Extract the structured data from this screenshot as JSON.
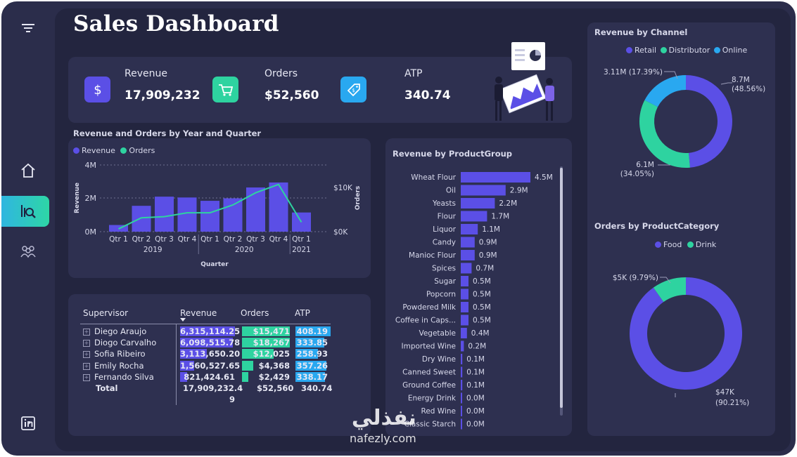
{
  "page": {
    "title": "Sales Dashboard"
  },
  "sidebar": {
    "items": [
      {
        "name": "filter-icon"
      },
      {
        "name": "home-icon"
      },
      {
        "name": "analytics-icon",
        "active": true
      },
      {
        "name": "team-icon"
      },
      {
        "name": "linkedin-icon"
      }
    ]
  },
  "kpis": [
    {
      "label": "Revenue",
      "value": "17,909,232",
      "icon": "dollar-icon",
      "color": "#5b4fe6"
    },
    {
      "label": "Orders",
      "value": "$52,560",
      "icon": "cart-icon",
      "color": "#2ed3a0"
    },
    {
      "label": "ATP",
      "value": "340.74",
      "icon": "tag-icon",
      "color": "#29a8f0"
    }
  ],
  "combo": {
    "title": "Revenue and Orders by Year and Quarter",
    "legend": [
      "Revenue",
      "Orders"
    ],
    "y_left_label": "Revenue",
    "y_right_label": "Orders",
    "x_label": "Quarter",
    "y_left_ticks": [
      "4M",
      "2M",
      "0M"
    ],
    "y_right_ticks": [
      "$10K",
      "$0K"
    ],
    "quarters": [
      "Qtr 1",
      "Qtr 2",
      "Qtr 3",
      "Qtr 4",
      "Qtr 1",
      "Qtr 2",
      "Qtr 3",
      "Qtr 4",
      "Qtr 1"
    ],
    "years": [
      "2019",
      "2020",
      "2021"
    ]
  },
  "table": {
    "headers": [
      "Supervisor",
      "Revenue",
      "Orders",
      "ATP"
    ],
    "rows": [
      {
        "name": "Diego Araujo",
        "revenue": "6,315,114.25",
        "orders": "$15,471",
        "atp": "408.19",
        "rev_frac": 1.0,
        "ord_frac": 1.0,
        "atp_frac": 1.0
      },
      {
        "name": "Diogo Carvalho",
        "revenue": "6,098,515.78",
        "orders": "$18,267",
        "atp": "333.85",
        "rev_frac": 0.966,
        "ord_frac": 1.0,
        "atp_frac": 0.82
      },
      {
        "name": "Sofia Ribeiro",
        "revenue": "3,113,650.20",
        "orders": "$12,025",
        "atp": "258.93",
        "rev_frac": 0.49,
        "ord_frac": 0.66,
        "atp_frac": 0.63
      },
      {
        "name": "Emily Rocha",
        "revenue": "1,560,527.65",
        "orders": "$4,368",
        "atp": "357.26",
        "rev_frac": 0.25,
        "ord_frac": 0.24,
        "atp_frac": 0.88
      },
      {
        "name": "Fernando Silva",
        "revenue": "821,424.61",
        "orders": "$2,429",
        "atp": "338.17",
        "rev_frac": 0.13,
        "ord_frac": 0.13,
        "atp_frac": 0.83
      }
    ],
    "total": {
      "label": "Total",
      "revenue_line1": "17,909,232.4",
      "revenue_line2": "9",
      "orders": "$52,560",
      "atp": "340.74"
    }
  },
  "product_group": {
    "title": "Revenue by ProductGroup"
  },
  "channel": {
    "title": "Revenue by Channel",
    "legend": [
      "Retail",
      "Distributor",
      "Online"
    ]
  },
  "category": {
    "title": "Orders by ProductCategory",
    "legend": [
      "Food",
      "Drink"
    ]
  },
  "watermark": {
    "arabic": "نفذلي",
    "latin": "nafezly.com"
  },
  "colors": {
    "purple": "#5b4fe6",
    "green": "#2ed3a0",
    "blue": "#29a8f0",
    "panel": "#2e3050"
  },
  "chart_data": [
    {
      "type": "bar",
      "title": "Revenue and Orders by Year and Quarter",
      "xlabel": "Quarter",
      "ylabel": "Revenue",
      "categories": [
        "2019 Qtr 1",
        "2019 Qtr 2",
        "2019 Qtr 3",
        "2019 Qtr 4",
        "2020 Qtr 1",
        "2020 Qtr 2",
        "2020 Qtr 3",
        "2020 Qtr 4",
        "2021 Qtr 1"
      ],
      "ylim": [
        0,
        4000000
      ],
      "series": [
        {
          "name": "Revenue",
          "values": [
            400000,
            1550000,
            2100000,
            2050000,
            1850000,
            2000000,
            2650000,
            2950000,
            1150000
          ]
        },
        {
          "name": "Orders",
          "values": [
            500,
            2500,
            2700,
            3400,
            3400,
            4800,
            7000,
            8500,
            1700
          ],
          "axis": "right",
          "ylim": [
            0,
            12000
          ]
        }
      ]
    },
    {
      "type": "bar",
      "orientation": "horizontal",
      "title": "Revenue by ProductGroup",
      "categories": [
        "Wheat Flour",
        "Oil",
        "Yeasts",
        "Flour",
        "Liquor",
        "Candy",
        "Manioc Flour",
        "Spices",
        "Sugar",
        "Popcorn",
        "Powdered Milk",
        "Coffee in Caps...",
        "Vegetable",
        "Imported Wine",
        "Dry Wine",
        "Canned Sweet",
        "Ground Coffee",
        "Energy Drink",
        "Red Wine",
        "Classic Starch"
      ],
      "values": [
        4500000,
        2900000,
        2200000,
        1700000,
        1100000,
        900000,
        900000,
        700000,
        500000,
        500000,
        500000,
        500000,
        400000,
        200000,
        100000,
        100000,
        100000,
        0,
        0,
        0
      ],
      "labels": [
        "4.5M",
        "2.9M",
        "2.2M",
        "1.7M",
        "1.1M",
        "0.9M",
        "0.9M",
        "0.7M",
        "0.5M",
        "0.5M",
        "0.5M",
        "0.5M",
        "0.4M",
        "0.2M",
        "0.1M",
        "0.1M",
        "0.1M",
        "0.0M",
        "0.0M",
        "0.0M"
      ]
    },
    {
      "type": "pie",
      "title": "Revenue by Channel",
      "categories": [
        "Retail",
        "Distributor",
        "Online"
      ],
      "values": [
        48.56,
        34.05,
        17.39
      ],
      "labels": [
        "8.7M (48.56%)",
        "6.1M (34.05%)",
        "3.11M (17.39%)"
      ],
      "colors": [
        "#5b4fe6",
        "#2ed3a0",
        "#29a8f0"
      ]
    },
    {
      "type": "pie",
      "title": "Orders by ProductCategory",
      "categories": [
        "Food",
        "Drink"
      ],
      "values": [
        90.21,
        9.79
      ],
      "labels": [
        "$47K (90.21%)",
        "$5K (9.79%)"
      ],
      "colors": [
        "#5b4fe6",
        "#2ed3a0"
      ]
    }
  ]
}
